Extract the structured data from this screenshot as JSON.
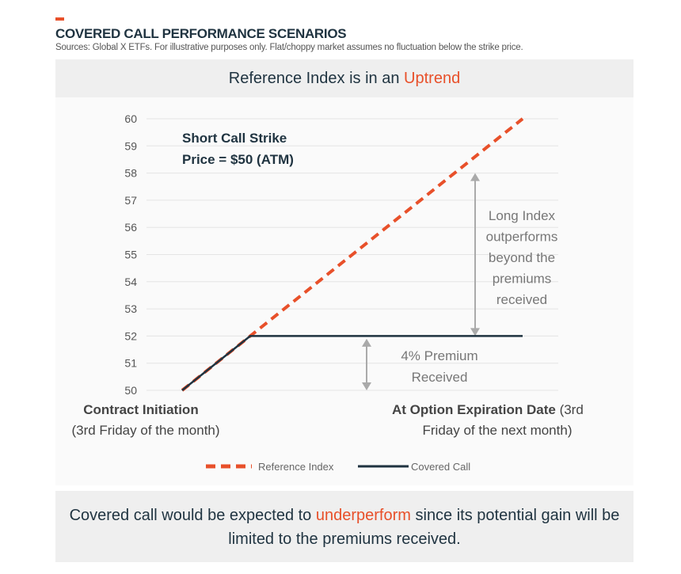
{
  "header": {
    "title": "COVERED CALL PERFORMANCE SCENARIOS",
    "source": "Sources: Global X ETFs. For illustrative purposes only. Flat/choppy market assumes no fluctuation below the strike price."
  },
  "banner": {
    "prefix": "Reference Index is in an ",
    "highlight": "Uptrend"
  },
  "footer": {
    "prefix": "Covered call would be expected to ",
    "highlight": "underperform",
    "suffix": " since its potential gain will be limited to the premiums received."
  },
  "colors": {
    "accent": "#e8502a",
    "dark": "#1f3340",
    "arrow": "#aaaaaa"
  },
  "chart_data": {
    "type": "line",
    "ylim": [
      50,
      60
    ],
    "yticks": [
      50,
      51,
      52,
      53,
      54,
      55,
      56,
      57,
      58,
      59,
      60
    ],
    "xlim": [
      0,
      10
    ],
    "x_labels": {
      "start_bold": "Contract Initiation",
      "start_sub": "(3rd Friday of the month)",
      "end_bold": "At Option Expiration Date",
      "end_rest": " (3rd",
      "end_sub": "Friday of the next month)"
    },
    "series": [
      {
        "name": "Reference Index",
        "color": "#e8502a",
        "dashed": true,
        "points": [
          [
            0,
            50
          ],
          [
            10,
            60
          ]
        ]
      },
      {
        "name": "Covered Call",
        "color": "#1f3340",
        "dashed": false,
        "points": [
          [
            0,
            50
          ],
          [
            2,
            52
          ],
          [
            10,
            52
          ]
        ]
      }
    ],
    "annotations": {
      "strike": [
        "Short Call Strike",
        "Price = $50 (ATM)"
      ],
      "outperform": [
        "Long Index",
        "outperforms",
        "beyond the",
        "premiums",
        "received"
      ],
      "premium": [
        "4% Premium",
        "Received"
      ]
    },
    "legend": "bottom"
  }
}
